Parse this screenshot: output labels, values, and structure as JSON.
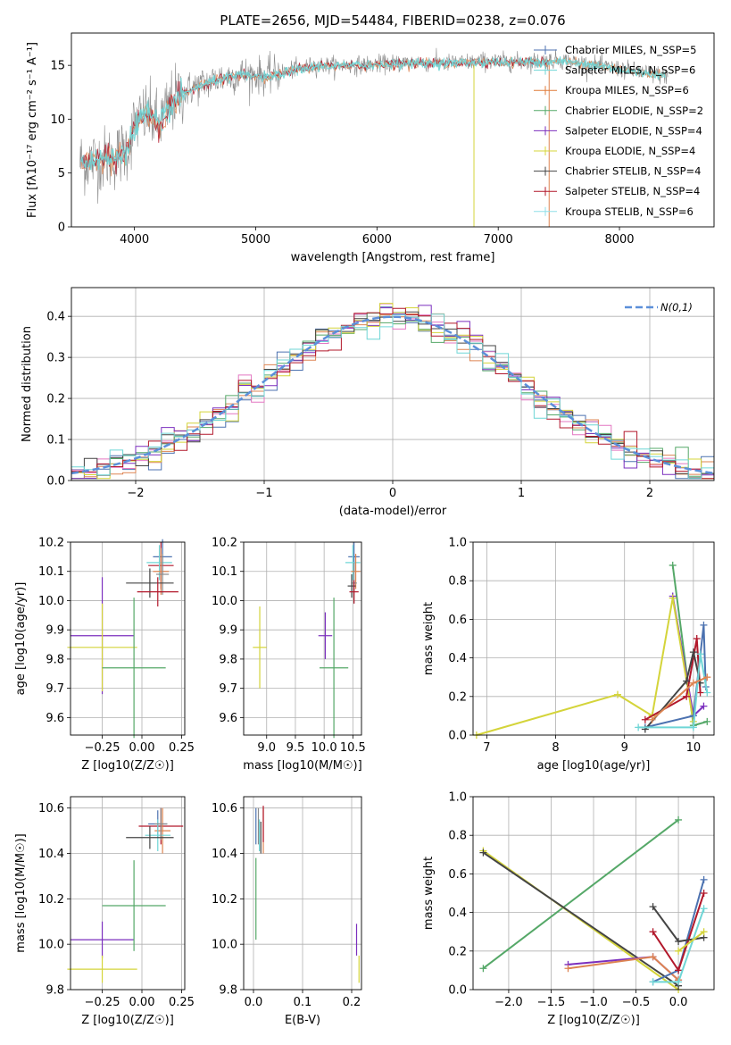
{
  "title": "PLATE=2656, MJD=54484, FIBERID=0238, z=0.076",
  "colors": [
    "#4c72b0",
    "#8c8c8c",
    "#dd8452",
    "#55a868",
    "#7b2fbe",
    "#d4d43a",
    "#444444",
    "#b2182b",
    "#6fd6d6"
  ],
  "extra_colors": {
    "salpeter_miles_hist": "#e377c2",
    "kroupa_miles_line": "#e07b39",
    "salpeter_miles_line": "#e377c2",
    "normal_line": "#5b8fd9"
  },
  "chart_data": [
    {
      "type": "line",
      "id": "spectrum",
      "xlabel": "wavelength [Angstrom, rest frame]",
      "ylabel": "Flux [fλ10⁻¹⁷ erg cm⁻² s⁻¹ A⁻¹]",
      "xlim": [
        3480,
        8780
      ],
      "ylim": [
        0,
        18
      ],
      "xticks": [
        4000,
        5000,
        6000,
        7000,
        8000
      ],
      "yticks": [
        0,
        5,
        10,
        15
      ],
      "grid": false,
      "legend_position": "right",
      "legend": [
        "Chabrier MILES, N_SSP=5",
        "Salpeter MILES, N_SSP=6",
        "Kroupa MILES, N_SSP=6",
        "Chabrier ELODIE, N_SSP=2",
        "Salpeter ELODIE, N_SSP=4",
        "Kroupa ELODIE, N_SSP=4",
        "Chabrier STELIB, N_SSP=4",
        "Salpeter STELIB, N_SSP=4",
        "Kroupa STELIB, N_SSP=6"
      ],
      "x": [
        3550,
        3700,
        3850,
        3950,
        4000,
        4100,
        4200,
        4300,
        4400,
        4500,
        4700,
        4900,
        5100,
        5300,
        5500,
        5800,
        6000,
        6300,
        6600,
        6900,
        7200,
        7500,
        7800,
        8100,
        8400
      ],
      "observed": [
        6.0,
        6.2,
        6.5,
        7.5,
        9.5,
        10.5,
        9.5,
        11.5,
        12.5,
        13.0,
        13.8,
        14.2,
        14.0,
        14.6,
        15.0,
        15.0,
        15.1,
        15.3,
        15.2,
        15.4,
        15.3,
        15.5,
        15.0,
        14.5,
        14.0
      ],
      "model": [
        6.0,
        6.2,
        6.3,
        7.3,
        9.5,
        10.7,
        9.3,
        11.3,
        12.3,
        12.9,
        13.7,
        14.1,
        13.9,
        14.5,
        14.9,
        15.0,
        15.0,
        15.2,
        15.2,
        15.3,
        15.3,
        15.4,
        15.0,
        14.4,
        14.0
      ]
    },
    {
      "type": "bar",
      "id": "residual-histogram",
      "xlabel": "(data-model)/error",
      "ylabel": "Normed distribution",
      "xlim": [
        -2.5,
        2.5
      ],
      "ylim": [
        0,
        0.47
      ],
      "xticks": [
        -2,
        -1,
        0,
        1,
        2
      ],
      "yticks": [
        0.0,
        0.1,
        0.2,
        0.3,
        0.4
      ],
      "grid": true,
      "legend_position": "top-right",
      "legend": [
        "N(0,1)"
      ],
      "bin_width": 0.1
    },
    {
      "type": "scatter",
      "id": "age-vs-z",
      "xlabel": "Z [log10(Z/Z☉)]",
      "ylabel": "age  [log10(age/yr)]",
      "xlim": [
        -0.45,
        0.27
      ],
      "ylim": [
        9.54,
        10.2
      ],
      "xticks": [
        -0.25,
        0.0,
        0.25
      ],
      "yticks": [
        9.6,
        9.7,
        9.8,
        9.9,
        10.0,
        10.1,
        10.2
      ],
      "grid": true,
      "points": [
        {
          "x": 0.13,
          "y": 10.15,
          "xerr": 0.06,
          "yerr": 0.06,
          "c": 0
        },
        {
          "x": 0.12,
          "y": 10.12,
          "xerr": 0.08,
          "yerr": 0.08,
          "c": 7
        },
        {
          "x": 0.11,
          "y": 10.13,
          "xerr": 0.08,
          "yerr": 0.06,
          "c": 8
        },
        {
          "x": 0.12,
          "y": 10.1,
          "xerr": 0.05,
          "yerr": 0.08,
          "c": 2
        },
        {
          "x": 0.13,
          "y": 10.09,
          "xerr": 0.04,
          "yerr": 0.07,
          "c": 1
        },
        {
          "x": 0.05,
          "y": 10.06,
          "xerr": 0.15,
          "yerr": 0.05,
          "c": 6
        },
        {
          "x": 0.1,
          "y": 10.03,
          "xerr": 0.13,
          "yerr": 0.05,
          "c": 7
        },
        {
          "x": -0.25,
          "y": 9.88,
          "xerr": 0.2,
          "yerr": 0.2,
          "c": 4
        },
        {
          "x": -0.25,
          "y": 9.84,
          "xerr": 0.22,
          "yerr": 0.15,
          "c": 5
        },
        {
          "x": -0.05,
          "y": 9.77,
          "xerr": 0.2,
          "yerr": 0.24,
          "c": 3
        }
      ]
    },
    {
      "type": "scatter",
      "id": "age-vs-mass",
      "xlabel": "mass [log10(M/M☉)]",
      "ylabel": "",
      "xlim": [
        8.6,
        10.65
      ],
      "ylim": [
        9.54,
        10.2
      ],
      "xticks": [
        9.0,
        9.5,
        10.0,
        10.5
      ],
      "yticks": [
        9.6,
        9.7,
        9.8,
        9.9,
        10.0,
        10.1,
        10.2
      ],
      "grid": true,
      "points": [
        {
          "x": 10.52,
          "y": 10.15,
          "xerr": 0.1,
          "yerr": 0.05,
          "c": 0
        },
        {
          "x": 10.5,
          "y": 10.13,
          "xerr": 0.13,
          "yerr": 0.06,
          "c": 8
        },
        {
          "x": 10.55,
          "y": 10.1,
          "xerr": 0.08,
          "yerr": 0.06,
          "c": 2
        },
        {
          "x": 10.52,
          "y": 10.06,
          "xerr": 0.05,
          "yerr": 0.07,
          "c": 1
        },
        {
          "x": 10.48,
          "y": 10.05,
          "xerr": 0.07,
          "yerr": 0.04,
          "c": 6
        },
        {
          "x": 10.52,
          "y": 10.03,
          "xerr": 0.08,
          "yerr": 0.04,
          "c": 7
        },
        {
          "x": 10.02,
          "y": 9.88,
          "xerr": 0.12,
          "yerr": 0.08,
          "c": 4
        },
        {
          "x": 8.88,
          "y": 9.84,
          "xerr": 0.12,
          "yerr": 0.14,
          "c": 5
        },
        {
          "x": 10.17,
          "y": 9.77,
          "xerr": 0.25,
          "yerr": 0.24,
          "c": 3
        }
      ]
    },
    {
      "type": "line",
      "id": "mass-weight-vs-age",
      "xlabel": "age  [log10(age/yr)]",
      "ylabel": "mass weight",
      "xlim": [
        6.8,
        10.3
      ],
      "ylim": [
        0,
        1.0
      ],
      "xticks": [
        7,
        8,
        9,
        10
      ],
      "yticks": [
        0.0,
        0.2,
        0.4,
        0.6,
        0.8,
        1.0
      ],
      "grid": true,
      "series": [
        {
          "c": 3,
          "x": [
            9.7,
            10.0,
            10.2
          ],
          "y": [
            0.88,
            0.05,
            0.07
          ]
        },
        {
          "c": 4,
          "x": [
            9.7,
            10.0,
            10.15
          ],
          "y": [
            0.72,
            0.1,
            0.15
          ]
        },
        {
          "c": 5,
          "x": [
            6.85,
            8.9,
            9.4,
            9.7,
            10.0
          ],
          "y": [
            0.0,
            0.21,
            0.1,
            0.71,
            0.07
          ]
        },
        {
          "c": 0,
          "x": [
            9.3,
            10.0,
            10.15,
            10.18
          ],
          "y": [
            0.04,
            0.1,
            0.57,
            0.25
          ]
        },
        {
          "c": 7,
          "x": [
            9.3,
            9.9,
            10.05,
            10.1
          ],
          "y": [
            0.08,
            0.2,
            0.5,
            0.22
          ]
        },
        {
          "c": 6,
          "x": [
            9.3,
            9.9,
            10.0,
            10.1
          ],
          "y": [
            0.03,
            0.28,
            0.43,
            0.27
          ]
        },
        {
          "c": 8,
          "x": [
            9.2,
            10.0,
            10.1,
            10.2
          ],
          "y": [
            0.04,
            0.04,
            0.42,
            0.22
          ]
        },
        {
          "c": 2,
          "x": [
            9.4,
            10.0,
            10.2
          ],
          "y": [
            0.08,
            0.27,
            0.3
          ]
        }
      ]
    },
    {
      "type": "scatter",
      "id": "mass-vs-z",
      "xlabel": "Z [log10(Z/Z☉)]",
      "ylabel": "mass [log10(M/M☉)]",
      "xlim": [
        -0.45,
        0.27
      ],
      "ylim": [
        9.8,
        10.65
      ],
      "xticks": [
        -0.25,
        0.0,
        0.25
      ],
      "yticks": [
        9.8,
        10.0,
        10.2,
        10.4,
        10.6
      ],
      "grid": true,
      "points": [
        {
          "x": 0.1,
          "y": 10.53,
          "xerr": 0.06,
          "yerr": 0.06,
          "c": 0
        },
        {
          "x": 0.12,
          "y": 10.52,
          "xerr": 0.14,
          "yerr": 0.08,
          "c": 7
        },
        {
          "x": 0.13,
          "y": 10.5,
          "xerr": 0.05,
          "yerr": 0.1,
          "c": 2
        },
        {
          "x": 0.1,
          "y": 10.48,
          "xerr": 0.08,
          "yerr": 0.07,
          "c": 8
        },
        {
          "x": 0.12,
          "y": 10.53,
          "xerr": 0.04,
          "yerr": 0.07,
          "c": 1
        },
        {
          "x": 0.05,
          "y": 10.47,
          "xerr": 0.15,
          "yerr": 0.05,
          "c": 6
        },
        {
          "x": -0.25,
          "y": 10.02,
          "xerr": 0.2,
          "yerr": 0.08,
          "c": 4
        },
        {
          "x": -0.25,
          "y": 9.89,
          "xerr": 0.22,
          "yerr": 0.06,
          "c": 5
        },
        {
          "x": -0.05,
          "y": 10.17,
          "xerr": 0.2,
          "yerr": 0.2,
          "c": 3
        }
      ]
    },
    {
      "type": "scatter",
      "id": "mass-vs-ebv",
      "xlabel": "E(B-V)",
      "ylabel": "",
      "xlim": [
        -0.02,
        0.22
      ],
      "ylim": [
        9.8,
        10.65
      ],
      "xticks": [
        0.0,
        0.1,
        0.2
      ],
      "yticks": [
        9.8,
        10.0,
        10.2,
        10.4,
        10.6
      ],
      "grid": true,
      "points": [
        {
          "x": 0.005,
          "y": 10.52,
          "xerr": 0.0,
          "yerr": 0.08,
          "c": 0
        },
        {
          "x": 0.01,
          "y": 10.52,
          "xerr": 0.0,
          "yerr": 0.08,
          "c": 1
        },
        {
          "x": 0.02,
          "y": 10.5,
          "xerr": 0.0,
          "yerr": 0.1,
          "c": 2
        },
        {
          "x": 0.005,
          "y": 10.2,
          "xerr": 0.0,
          "yerr": 0.18,
          "c": 3
        },
        {
          "x": 0.015,
          "y": 10.47,
          "xerr": 0.0,
          "yerr": 0.07,
          "c": 6
        },
        {
          "x": 0.02,
          "y": 10.53,
          "xerr": 0.0,
          "yerr": 0.08,
          "c": 7
        },
        {
          "x": 0.012,
          "y": 10.48,
          "xerr": 0.0,
          "yerr": 0.07,
          "c": 8
        },
        {
          "x": 0.21,
          "y": 10.02,
          "xerr": 0.0,
          "yerr": 0.07,
          "c": 4
        },
        {
          "x": 0.215,
          "y": 9.89,
          "xerr": 0.0,
          "yerr": 0.06,
          "c": 5
        }
      ]
    },
    {
      "type": "line",
      "id": "mass-weight-vs-z",
      "xlabel": "Z [log10(Z/Z☉)]",
      "ylabel": "mass weight",
      "xlim": [
        -2.42,
        0.42
      ],
      "ylim": [
        0,
        1.0
      ],
      "xticks": [
        -2.0,
        -1.5,
        -1.0,
        -0.5,
        0.0
      ],
      "yticks": [
        0.0,
        0.2,
        0.4,
        0.6,
        0.8,
        1.0
      ],
      "grid": true,
      "series": [
        {
          "c": 3,
          "x": [
            -2.3,
            0.0
          ],
          "y": [
            0.11,
            0.88
          ]
        },
        {
          "c": 5,
          "x": [
            -2.3,
            0.0
          ],
          "y": [
            0.72,
            0.0
          ]
        },
        {
          "c": 6,
          "x": [
            -2.3,
            0.0
          ],
          "y": [
            0.71,
            0.02
          ]
        },
        {
          "c": 4,
          "x": [
            -1.3,
            -0.3,
            0.0
          ],
          "y": [
            0.13,
            0.17,
            0.05
          ]
        },
        {
          "c": 2,
          "x": [
            -1.3,
            -0.3,
            0.0
          ],
          "y": [
            0.11,
            0.17,
            0.05
          ]
        },
        {
          "c": 0,
          "x": [
            -0.3,
            0.0,
            0.3
          ],
          "y": [
            0.04,
            0.1,
            0.57
          ]
        },
        {
          "c": 7,
          "x": [
            -0.3,
            0.0,
            0.3
          ],
          "y": [
            0.3,
            0.1,
            0.5
          ]
        },
        {
          "c": 6,
          "x": [
            -0.3,
            0.0,
            0.3
          ],
          "y": [
            0.43,
            0.25,
            0.27
          ]
        },
        {
          "c": 8,
          "x": [
            -0.3,
            0.0,
            0.3
          ],
          "y": [
            0.04,
            0.04,
            0.42
          ]
        },
        {
          "c": 5,
          "x": [
            0.0,
            0.3
          ],
          "y": [
            0.2,
            0.3
          ]
        }
      ]
    }
  ]
}
